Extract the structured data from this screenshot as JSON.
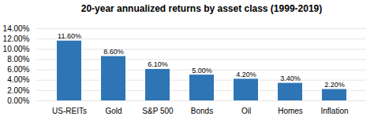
{
  "chart_data": {
    "type": "bar",
    "title": "20-year annualized returns by asset class (1999-2019)",
    "categories": [
      "US-REITs",
      "Gold",
      "S&P 500",
      "Bonds",
      "Oil",
      "Homes",
      "Inflation"
    ],
    "values": [
      11.6,
      8.6,
      6.1,
      5.0,
      4.2,
      3.4,
      2.2
    ],
    "value_labels": [
      "11.60%",
      "8.60%",
      "6.10%",
      "5.00%",
      "4.20%",
      "3.40%",
      "2.20%"
    ],
    "data_labels": true,
    "color": "#2E75B6",
    "ylim": [
      0,
      14
    ],
    "yticks": [
      {
        "value": 0,
        "label": "0.00%"
      },
      {
        "value": 2,
        "label": "2.00%"
      },
      {
        "value": 4,
        "label": "4.00%"
      },
      {
        "value": 6,
        "label": "6.00%"
      },
      {
        "value": 8,
        "label": "8.00%"
      },
      {
        "value": 10,
        "label": "10.00%"
      },
      {
        "value": 12,
        "label": "12.00%"
      },
      {
        "value": 14,
        "label": "14.00%"
      }
    ],
    "grid": true
  }
}
